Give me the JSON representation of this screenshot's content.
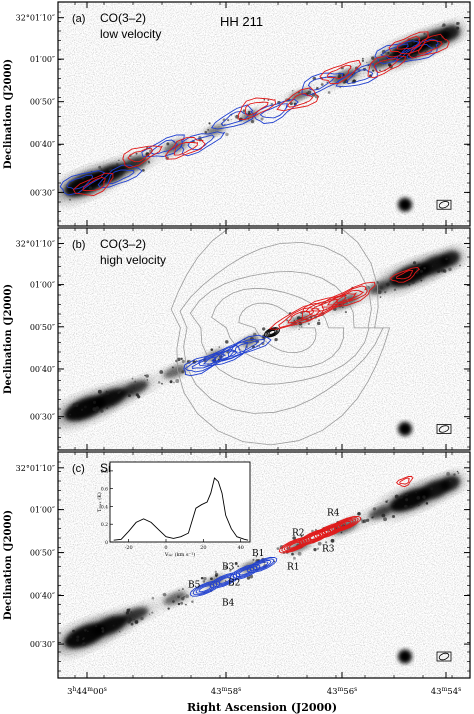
{
  "figure": {
    "xlabel": "Right Ascension (J2000)",
    "ylabel": "Declination (J2000)",
    "x_ticks": [
      {
        "main": "3",
        "sup1": "h",
        "mid": "44",
        "sup2": "m",
        "end": "00",
        "sup3": "s"
      },
      {
        "main": "43",
        "sup1": "m",
        "mid": "58",
        "sup2": "s"
      },
      {
        "main": "43",
        "sup1": "m",
        "mid": "56",
        "sup2": "s"
      },
      {
        "main": "43",
        "sup1": "m",
        "mid": "54",
        "sup2": "s"
      }
    ],
    "panels": [
      {
        "id": "a",
        "label": "(a)",
        "title_line1": "CO(3–2)",
        "title_line2": "low velocity",
        "object": "HH 211",
        "y_ticks": [
          "32°01′10″",
          "01′00″",
          "00′50″",
          "00′40″",
          "00′30″"
        ]
      },
      {
        "id": "b",
        "label": "(b)",
        "title_line1": "CO(3–2)",
        "title_line2": "high velocity",
        "y_ticks": [
          "32°01′10″",
          "01′00″",
          "00′50″",
          "00′40″",
          "00′30″"
        ]
      },
      {
        "id": "c",
        "label": "(c)",
        "title_line1": "SiO(8–7)",
        "y_ticks": [
          "32°01′10″",
          "01′00″",
          "00′50″",
          "00′40″",
          "00′30″"
        ],
        "knots": [
          "B1",
          "B2",
          "B3",
          "B4",
          "B5",
          "R1",
          "R2",
          "R3",
          "R4"
        ],
        "inset": {
          "ylabel": "Tₘₐₓ (K)",
          "xlabel": "Vₗₛᵣ (km s⁻¹)",
          "x_tick_labels": [
            "-20",
            "0",
            "20",
            "40"
          ],
          "y_tick_labels": [
            "0",
            "0.2",
            "0.4",
            "0.6",
            "0.8"
          ]
        }
      }
    ],
    "colors": {
      "blueshifted": "#1f3fd0",
      "redshifted": "#e01818",
      "continuum": "#000000",
      "dust_contours": "#9a9a9a",
      "image_gray": "#555555"
    },
    "chart_data": {
      "type": "line",
      "title": "",
      "xlabel": "V_lsr (km s^-1)",
      "ylabel": "T_mb (K)",
      "xlim": [
        -30,
        45
      ],
      "ylim": [
        0,
        0.9
      ],
      "x": [
        -28,
        -24,
        -20,
        -16,
        -12,
        -8,
        -4,
        0,
        4,
        8,
        12,
        16,
        19,
        22,
        24,
        26,
        28,
        30,
        32,
        35,
        38,
        42,
        44
      ],
      "values": [
        0.02,
        0.03,
        0.12,
        0.22,
        0.26,
        0.22,
        0.14,
        0.06,
        0.04,
        0.06,
        0.1,
        0.38,
        0.42,
        0.45,
        0.55,
        0.72,
        0.68,
        0.55,
        0.3,
        0.15,
        0.06,
        0.03,
        0.02
      ]
    }
  }
}
